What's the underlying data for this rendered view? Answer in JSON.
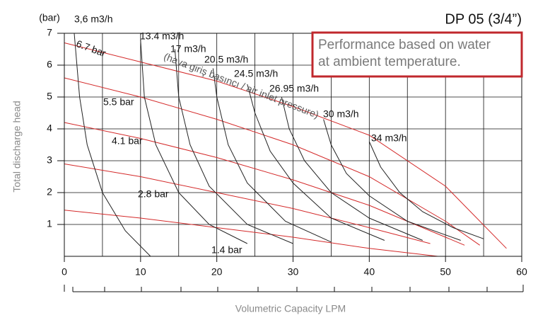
{
  "chart_data": {
    "type": "line",
    "title": "DP 05 (3/4”)",
    "note": [
      "Performance based on water",
      "at ambient temperature."
    ],
    "annotation": "(hava giriş basıncı / air inlet pressure)",
    "y_unit_label": "(bar)",
    "y_label": "Total discharge head",
    "x_label": "Volumetric Capacity LPM",
    "xlim": [
      0,
      60
    ],
    "xticks": [
      0,
      10,
      20,
      30,
      40,
      50,
      60
    ],
    "ylim": [
      0,
      7
    ],
    "yticks": [
      1,
      2,
      3,
      4,
      5,
      6,
      7
    ],
    "grid": true,
    "series": [
      {
        "name": "6.7 bar",
        "color": "#d42a2a",
        "x": [
          0,
          10,
          20,
          30,
          40,
          50,
          58
        ],
        "values": [
          6.7,
          6.1,
          5.5,
          4.7,
          3.8,
          2.2,
          0.25
        ]
      },
      {
        "name": "5.5 bar",
        "color": "#d42a2a",
        "x": [
          0,
          10,
          20,
          30,
          40,
          50,
          54.5
        ],
        "values": [
          5.6,
          5.0,
          4.3,
          3.5,
          2.5,
          1.1,
          0.35
        ]
      },
      {
        "name": "4.1 bar",
        "color": "#d42a2a",
        "x": [
          0,
          10,
          20,
          30,
          40,
          50,
          52.5
        ],
        "values": [
          4.2,
          3.7,
          3.1,
          2.4,
          1.6,
          0.6,
          0.35
        ]
      },
      {
        "name": "2.8 bar",
        "color": "#d42a2a",
        "x": [
          0,
          10,
          20,
          30,
          40,
          48
        ],
        "values": [
          2.9,
          2.5,
          2.0,
          1.5,
          0.9,
          0.4
        ]
      },
      {
        "name": "1.4 bar",
        "color": "#d42a2a",
        "x": [
          0,
          10,
          20,
          30,
          40,
          49
        ],
        "values": [
          1.45,
          1.2,
          0.9,
          0.6,
          0.25,
          0
        ]
      },
      {
        "name": "3,6 m3/h",
        "color": "#222222",
        "x": [
          1.3,
          2,
          3,
          5,
          8,
          11.3
        ],
        "values": [
          7,
          5,
          3.5,
          2,
          0.8,
          0
        ]
      },
      {
        "name": "13.4 m3/h",
        "color": "#222222",
        "x": [
          10,
          10.5,
          12,
          15,
          19,
          24
        ],
        "values": [
          6.8,
          5,
          3.5,
          2,
          1.0,
          0.4
        ]
      },
      {
        "name": "17 m3/h",
        "color": "#222222",
        "x": [
          14.5,
          15,
          16.5,
          19,
          24,
          30
        ],
        "values": [
          6.5,
          5,
          3.5,
          2.2,
          1.0,
          0.4
        ]
      },
      {
        "name": "20.5 m3/h",
        "color": "#222222",
        "x": [
          19.5,
          20,
          21.5,
          24,
          29,
          35
        ],
        "values": [
          5.9,
          5,
          3.5,
          2.3,
          1.1,
          0.45
        ]
      },
      {
        "name": "24.5 m3/h",
        "color": "#222222",
        "x": [
          24,
          25,
          27,
          30,
          35,
          42
        ],
        "values": [
          5.4,
          4.5,
          3.3,
          2.3,
          1.2,
          0.5
        ]
      },
      {
        "name": "26.95 m3/h",
        "color": "#222222",
        "x": [
          28.5,
          29.5,
          31.5,
          35,
          40,
          47
        ],
        "values": [
          5.0,
          4.0,
          3.0,
          2.0,
          1.2,
          0.5
        ]
      },
      {
        "name": "30 m3/h",
        "color": "#222222",
        "x": [
          34,
          35,
          37,
          40,
          45,
          52
        ],
        "values": [
          4.3,
          3.5,
          2.6,
          1.9,
          1.1,
          0.5
        ]
      },
      {
        "name": "34 m3/h",
        "color": "#222222",
        "x": [
          40,
          41.5,
          44,
          47,
          51,
          55
        ],
        "values": [
          3.6,
          2.8,
          2.0,
          1.4,
          0.9,
          0.55
        ]
      }
    ]
  }
}
